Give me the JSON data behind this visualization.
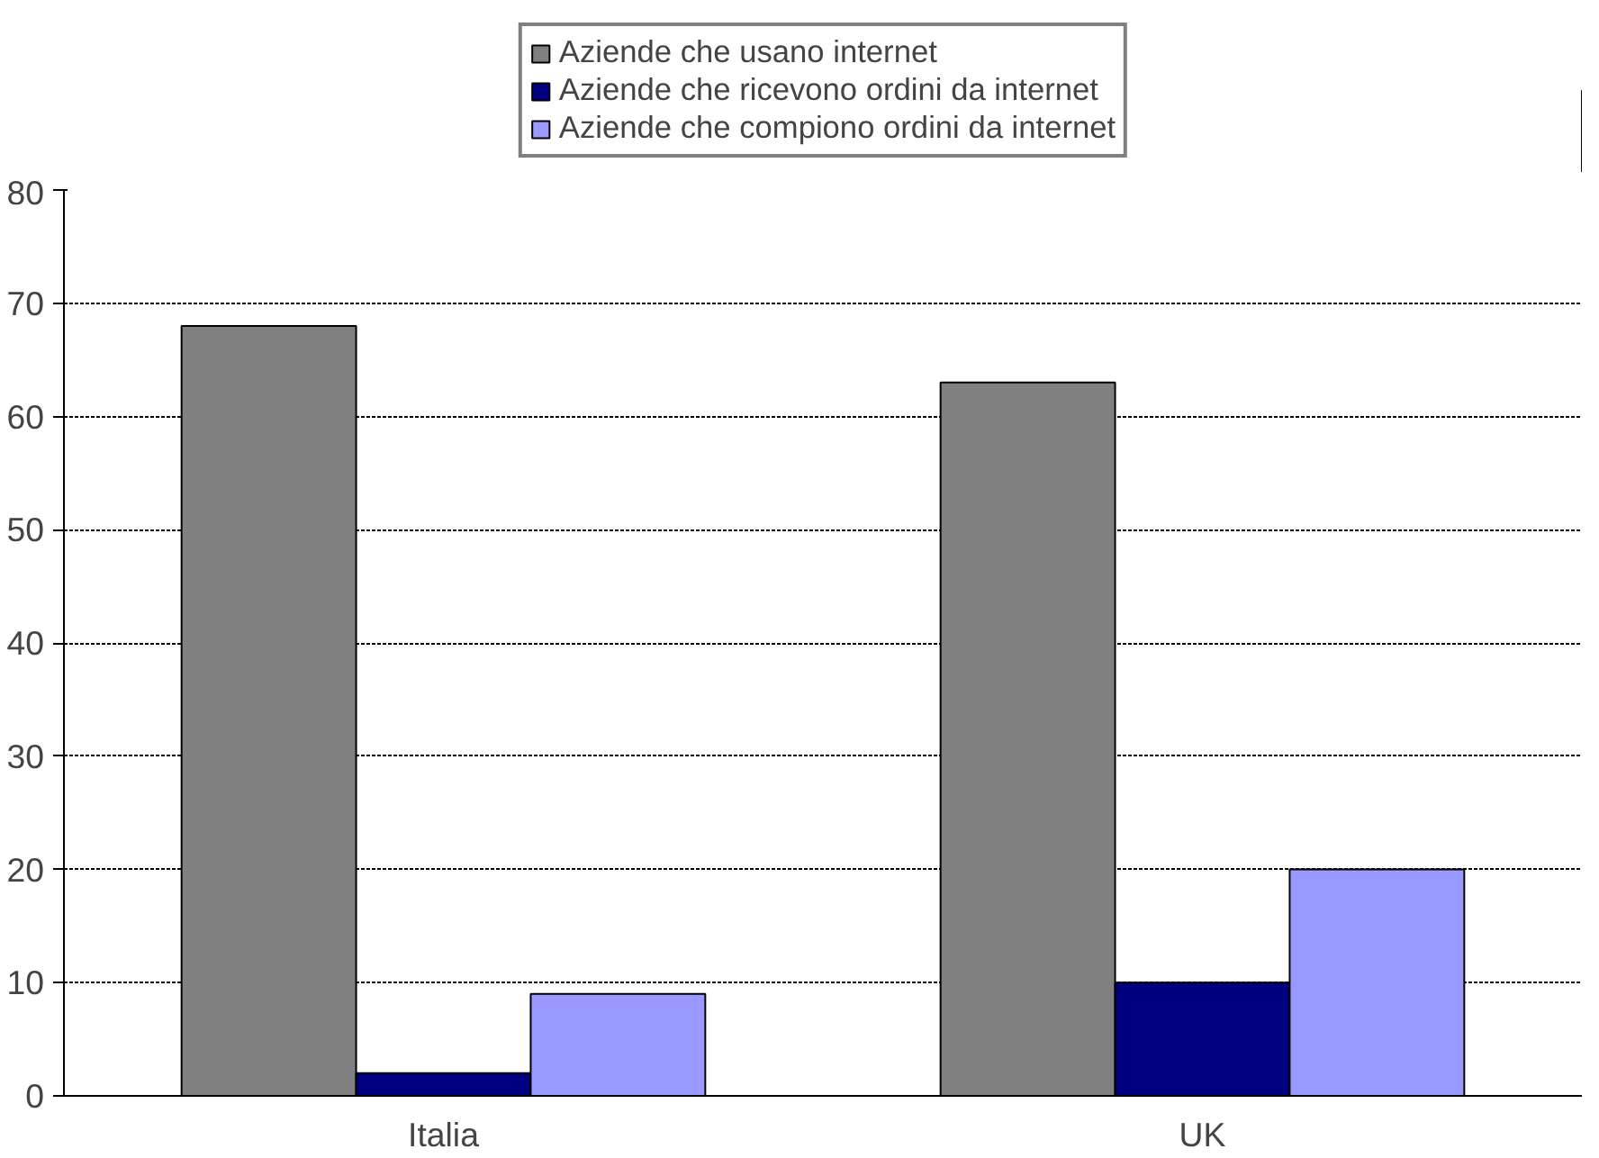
{
  "chart_data": {
    "type": "bar",
    "categories": [
      "Italia",
      "UK"
    ],
    "series": [
      {
        "name": "Aziende che usano internet",
        "color": "#808080",
        "values": [
          68,
          63
        ]
      },
      {
        "name": "Aziende che ricevono ordini da internet",
        "color": "#000080",
        "values": [
          2,
          10
        ]
      },
      {
        "name": "Aziende che compiono ordini da internet",
        "color": "#9999ff",
        "values": [
          9,
          20
        ]
      }
    ],
    "ylim": [
      0,
      80
    ],
    "yticks": [
      0,
      10,
      20,
      30,
      40,
      50,
      60,
      70,
      80
    ],
    "grid": "y",
    "legend": "top"
  }
}
